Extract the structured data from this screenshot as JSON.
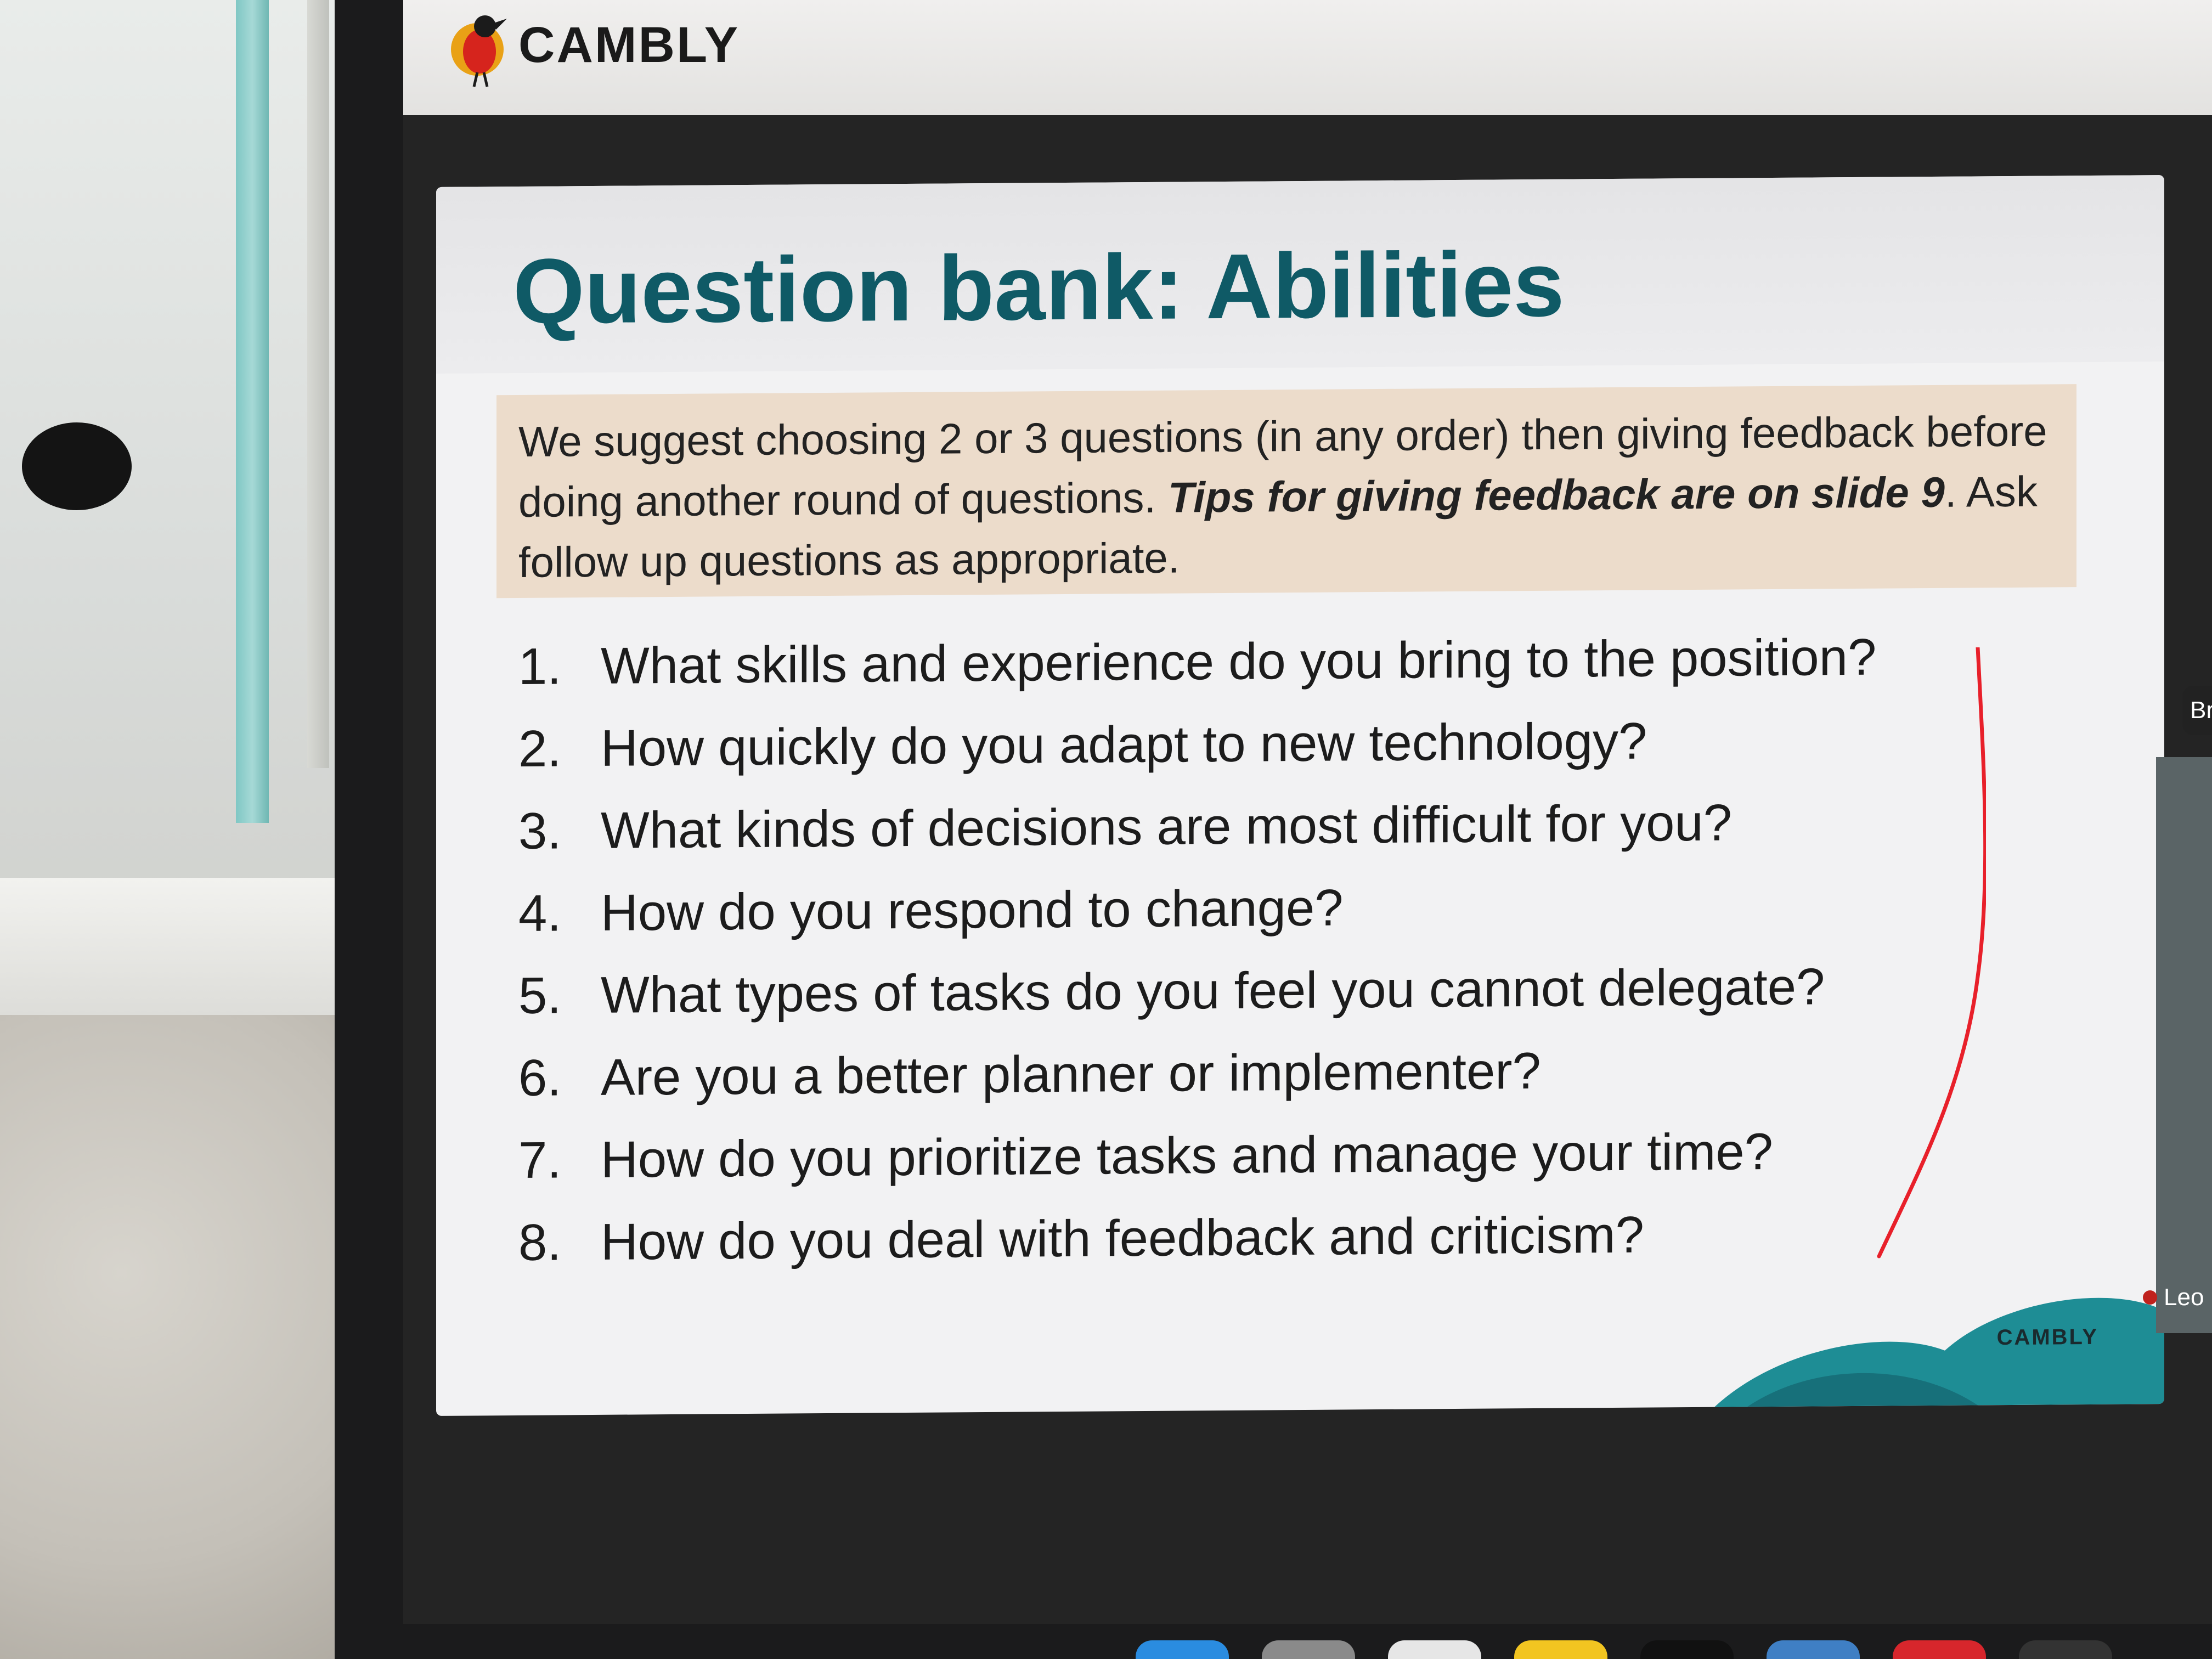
{
  "app": {
    "brand": "CAMBLY"
  },
  "slide": {
    "title": "Question bank: Abilities",
    "instructions": {
      "text_before": "We suggest choosing 2 or 3 questions (in any order) then giving feedback before doing another round of questions. ",
      "emphasis": "Tips for giving feedback are on slide 9",
      "text_after": ". Ask follow up questions as appropriate."
    },
    "questions": [
      {
        "number": "1.",
        "text": "What skills and experience do you bring to the position?"
      },
      {
        "number": "2.",
        "text": "How quickly do you adapt to new technology?"
      },
      {
        "number": "3.",
        "text": "What kinds of decisions are most difficult for you?"
      },
      {
        "number": "4.",
        "text": "How do you respond to change?"
      },
      {
        "number": "5.",
        "text": "What types of tasks do you feel you cannot delegate?"
      },
      {
        "number": "6.",
        "text": "Are you a better planner or implementer?"
      },
      {
        "number": "7.",
        "text": "How do you prioritize tasks and manage your time?"
      },
      {
        "number": "8.",
        "text": "How do you deal with feedback and criticism?"
      }
    ],
    "footer_brand": "CAMBLY"
  },
  "side_panel": {
    "label_top": "Br",
    "label_bottom": "Leo"
  },
  "colors": {
    "title": "#0f5a66",
    "instruction_bg": "#ecdccb",
    "annotation": "#e8202a",
    "footer_teal": "#1e8d95"
  }
}
